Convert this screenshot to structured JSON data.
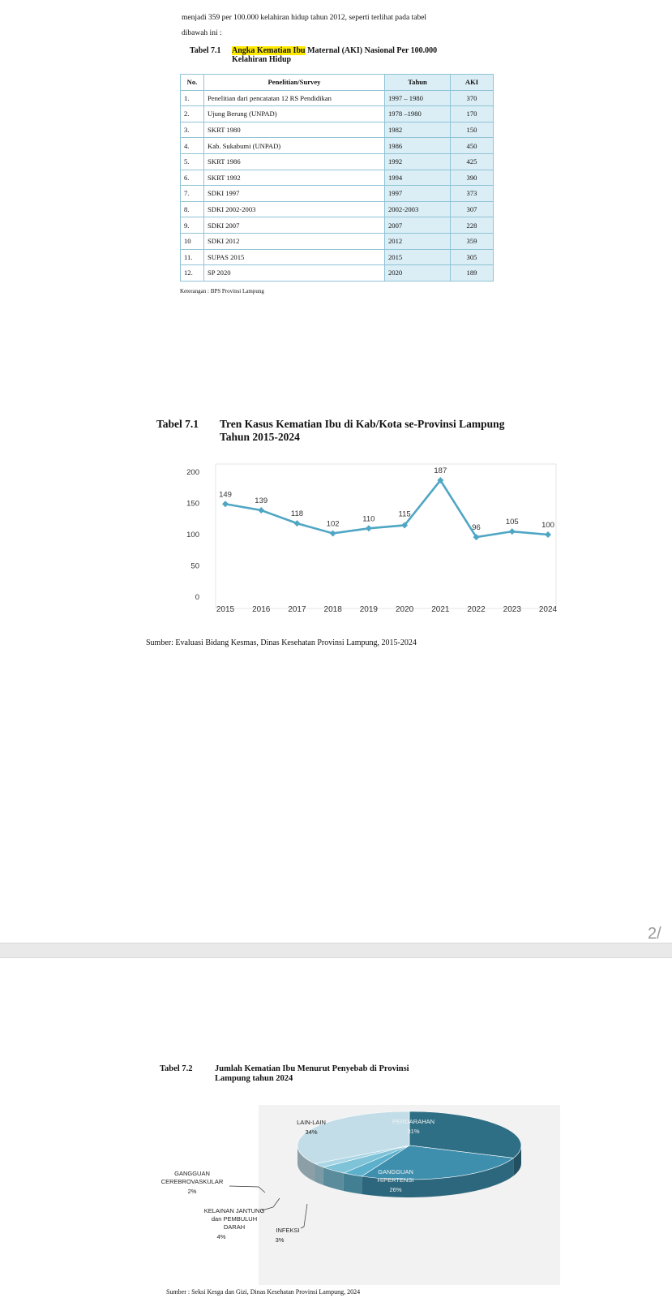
{
  "intro": {
    "line1": "menjadi 359 per 100.000 kelahiran hidup tahun 2012, seperti terlihat pada tabel",
    "line2": "dibawah ini :"
  },
  "table1": {
    "num": "Tabel 7.1",
    "highlight": "Angka Kematian Ibu",
    "title_rest": " Maternal (AKI) Nasional Per 100.000",
    "title_line2": "Kelahiran Hidup",
    "headers": [
      "No.",
      "Penelitian/Survey",
      "Tahun",
      "AKI"
    ],
    "rows": [
      [
        "1.",
        "Penelitian dari pencatatan 12 RS Pendidikan",
        "1997 – 1980",
        "370"
      ],
      [
        "2.",
        "Ujung Berung (UNPAD)",
        "1978 –1980",
        "170"
      ],
      [
        "3.",
        "SKRT 1980",
        "1982",
        "150"
      ],
      [
        "4.",
        "Kab. Sukabumi (UNPAD)",
        "1986",
        "450"
      ],
      [
        "5.",
        "SKRT 1986",
        "1992",
        "425"
      ],
      [
        "6.",
        "SKRT 1992",
        "1994",
        "390"
      ],
      [
        "7.",
        "SDKI 1997",
        "1997",
        "373"
      ],
      [
        "8.",
        "SDKI 2002-2003",
        "2002-2003",
        "307"
      ],
      [
        "9.",
        "SDKI 2007",
        "2007",
        "228"
      ],
      [
        "10",
        "SDKI 2012",
        "2012",
        "359"
      ],
      [
        "11.",
        "SUPAS 2015",
        "2015",
        "305"
      ],
      [
        "12.",
        "SP 2020",
        "2020",
        "189"
      ]
    ],
    "note": "Keterangan  :  BPS Provinsi Lampung"
  },
  "chart1": {
    "num": "Tabel 7.1",
    "title_line1": "Tren Kasus Kematian Ibu di Kab/Kota se-Provinsi Lampung",
    "title_line2": "Tahun 2015-2024",
    "source": "Sumber: Evaluasi Bidang Kesmas, Dinas Kesehatan Provinsi Lampung, 2015-2024"
  },
  "page_indicator": "2/",
  "table2": {
    "num": "Tabel 7.2",
    "title_line1": "Jumlah Kematian Ibu Menurut Penyebab di Provinsi",
    "title_line2": "Lampung tahun 2024",
    "source": "Sumber : Seksi Kesga dan Gizi, Dinas Kesehatan Provinsi Lampung, 2024"
  },
  "chart_data": [
    {
      "type": "line",
      "x": [
        "2015",
        "2016",
        "2017",
        "2018",
        "2019",
        "2020",
        "2021",
        "2022",
        "2023",
        "2024"
      ],
      "values": [
        149,
        139,
        118,
        102,
        110,
        115,
        187,
        96,
        105,
        100
      ],
      "y_ticks": [
        "0",
        "50",
        "100",
        "150",
        "200"
      ],
      "ylim": [
        0,
        200
      ],
      "data_labels": true,
      "grid": false,
      "color": "#4fa6c4"
    },
    {
      "type": "pie",
      "style": "3d",
      "slices": [
        {
          "label": "PERDARAHAN",
          "value": 31,
          "value_label": "31%",
          "color": "#2f6f86"
        },
        {
          "label": "GANGGUAN HIPERTENSI",
          "value": 26,
          "value_label": "26%",
          "color": "#3e8fad"
        },
        {
          "label": "INFEKSI",
          "value": 3,
          "value_label": "3%",
          "color": "#5cb0cc"
        },
        {
          "label": "KELAINAN JANTUNG dan PEMBULUH DARAH",
          "value": 4,
          "value_label": "4%",
          "color": "#7fc3d9"
        },
        {
          "label": "GANGGUAN CEREBROVASKULAR",
          "value": 2,
          "value_label": "2%",
          "color": "#a9d6e5"
        },
        {
          "label": "LAIN-LAIN",
          "value": 34,
          "value_label": "34%",
          "color": "#c3dde8"
        }
      ]
    }
  ]
}
